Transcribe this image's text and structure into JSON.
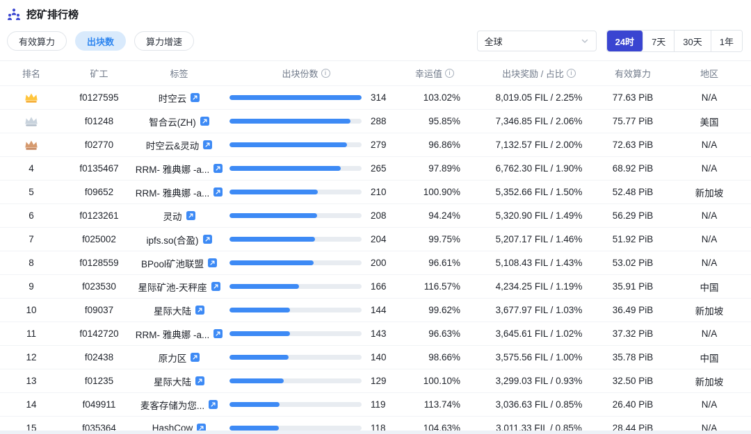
{
  "page": {
    "title": "挖矿排行榜",
    "tabs": [
      {
        "name": "tab-valid-power",
        "label": "有效算力",
        "active": false
      },
      {
        "name": "tab-block-count",
        "label": "出块数",
        "active": true
      },
      {
        "name": "tab-power-growth",
        "label": "算力增速",
        "active": false
      }
    ],
    "region_select": {
      "value": "全球"
    },
    "time_ranges": [
      {
        "name": "time-range-24h",
        "label": "24时",
        "active": true
      },
      {
        "name": "time-range-7d",
        "label": "7天",
        "active": false
      },
      {
        "name": "time-range-30d",
        "label": "30天",
        "active": false
      },
      {
        "name": "time-range-1y",
        "label": "1年",
        "active": false
      }
    ]
  },
  "colors": {
    "accent_blue": "#3D8AF5",
    "indigo": "#3A45D1",
    "active_tab_bg": "#D9EAFC",
    "active_tab_text": "#2E86F0",
    "medals": {
      "gold": {
        "fill": "#FFC53D",
        "base": "#F5A623"
      },
      "silver": {
        "fill": "#C9D3DD",
        "base": "#AEBAC7"
      },
      "bronze": {
        "fill": "#D69A6E",
        "base": "#C07B4D"
      }
    }
  },
  "table": {
    "headers": [
      {
        "key": "rank",
        "label": "排名",
        "info": false
      },
      {
        "key": "miner",
        "label": "矿工",
        "info": false
      },
      {
        "key": "tag",
        "label": "标签",
        "info": false
      },
      {
        "key": "shares",
        "label": "出块份数",
        "info": true
      },
      {
        "key": "luck",
        "label": "幸运值",
        "info": true
      },
      {
        "key": "reward",
        "label": "出块奖励 / 占比",
        "info": true
      },
      {
        "key": "power",
        "label": "有效算力",
        "info": false
      },
      {
        "key": "region",
        "label": "地区",
        "info": false
      }
    ],
    "rows": [
      {
        "rank": 1,
        "medal": "gold",
        "miner": "f0127595",
        "tag": "时空云",
        "shares": 314,
        "luck": "103.02%",
        "reward": "8,019.05 FIL / 2.25%",
        "power": "77.63 PiB",
        "region": "N/A"
      },
      {
        "rank": 2,
        "medal": "silver",
        "miner": "f01248",
        "tag": "智合云(ZH)",
        "shares": 288,
        "luck": "95.85%",
        "reward": "7,346.85 FIL / 2.06%",
        "power": "75.77 PiB",
        "region": "美国"
      },
      {
        "rank": 3,
        "medal": "bronze",
        "miner": "f02770",
        "tag": "时空云&灵动",
        "shares": 279,
        "luck": "96.86%",
        "reward": "7,132.57 FIL / 2.00%",
        "power": "72.63 PiB",
        "region": "N/A"
      },
      {
        "rank": 4,
        "medal": null,
        "miner": "f0135467",
        "tag": "RRM- 雅典娜 -a...",
        "shares": 265,
        "luck": "97.89%",
        "reward": "6,762.30 FIL / 1.90%",
        "power": "68.92 PiB",
        "region": "N/A"
      },
      {
        "rank": 5,
        "medal": null,
        "miner": "f09652",
        "tag": "RRM- 雅典娜 -a...",
        "shares": 210,
        "luck": "100.90%",
        "reward": "5,352.66 FIL / 1.50%",
        "power": "52.48 PiB",
        "region": "新加坡"
      },
      {
        "rank": 6,
        "medal": null,
        "miner": "f0123261",
        "tag": "灵动",
        "shares": 208,
        "luck": "94.24%",
        "reward": "5,320.90 FIL / 1.49%",
        "power": "56.29 PiB",
        "region": "N/A"
      },
      {
        "rank": 7,
        "medal": null,
        "miner": "f025002",
        "tag": "ipfs.so(合盈)",
        "shares": 204,
        "luck": "99.75%",
        "reward": "5,207.17 FIL / 1.46%",
        "power": "51.92 PiB",
        "region": "N/A"
      },
      {
        "rank": 8,
        "medal": null,
        "miner": "f0128559",
        "tag": "BPool矿池联盟",
        "shares": 200,
        "luck": "96.61%",
        "reward": "5,108.43 FIL / 1.43%",
        "power": "53.02 PiB",
        "region": "N/A"
      },
      {
        "rank": 9,
        "medal": null,
        "miner": "f023530",
        "tag": "星际矿池-天秤座",
        "shares": 166,
        "luck": "116.57%",
        "reward": "4,234.25 FIL / 1.19%",
        "power": "35.91 PiB",
        "region": "中国"
      },
      {
        "rank": 10,
        "medal": null,
        "miner": "f09037",
        "tag": "星际大陆",
        "shares": 144,
        "luck": "99.62%",
        "reward": "3,677.97 FIL / 1.03%",
        "power": "36.49 PiB",
        "region": "新加坡"
      },
      {
        "rank": 11,
        "medal": null,
        "miner": "f0142720",
        "tag": "RRM- 雅典娜 -a...",
        "shares": 143,
        "luck": "96.63%",
        "reward": "3,645.61 FIL / 1.02%",
        "power": "37.32 PiB",
        "region": "N/A"
      },
      {
        "rank": 12,
        "medal": null,
        "miner": "f02438",
        "tag": "原力区",
        "shares": 140,
        "luck": "98.66%",
        "reward": "3,575.56 FIL / 1.00%",
        "power": "35.78 PiB",
        "region": "中国"
      },
      {
        "rank": 13,
        "medal": null,
        "miner": "f01235",
        "tag": "星际大陆",
        "shares": 129,
        "luck": "100.10%",
        "reward": "3,299.03 FIL / 0.93%",
        "power": "32.50 PiB",
        "region": "新加坡"
      },
      {
        "rank": 14,
        "medal": null,
        "miner": "f049911",
        "tag": "麦客存储为您...",
        "shares": 119,
        "luck": "113.74%",
        "reward": "3,036.63 FIL / 0.85%",
        "power": "26.40 PiB",
        "region": "N/A"
      },
      {
        "rank": 15,
        "medal": null,
        "miner": "f035364",
        "tag": "HashCow",
        "shares": 118,
        "luck": "104.63%",
        "reward": "3,011.33 FIL / 0.85%",
        "power": "28.44 PiB",
        "region": "N/A"
      }
    ]
  }
}
